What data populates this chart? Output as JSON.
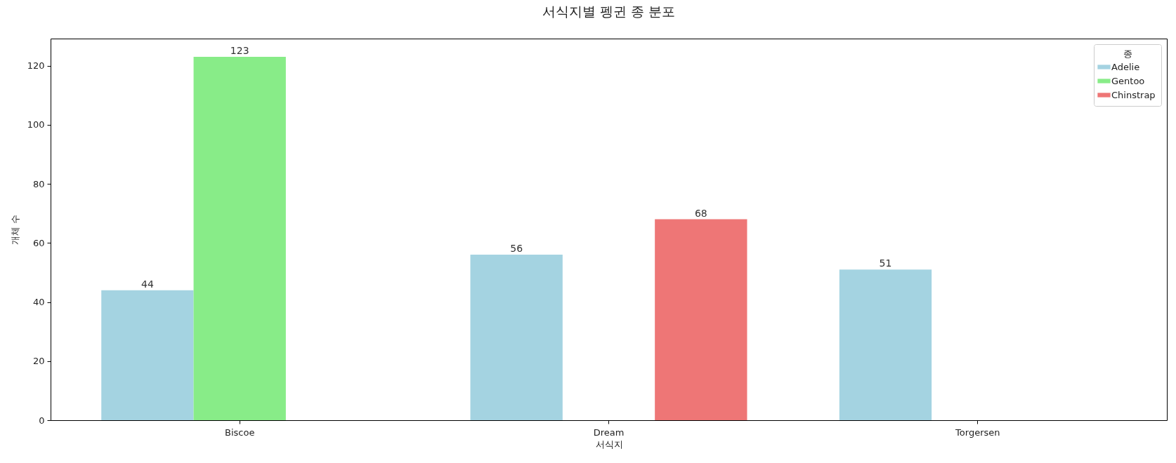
{
  "chart_data": {
    "type": "bar",
    "title": "서식지별 펭귄 종 분포",
    "xlabel": "서식지",
    "ylabel": "개체 수",
    "legend_title": "종",
    "categories": [
      "Biscoe",
      "Dream",
      "Torgersen"
    ],
    "series": [
      {
        "name": "Adelie",
        "color": "#a4d3e1",
        "values": [
          44,
          56,
          51
        ]
      },
      {
        "name": "Gentoo",
        "color": "#88ec88",
        "values": [
          123,
          null,
          null
        ]
      },
      {
        "name": "Chinstrap",
        "color": "#ee7676",
        "values": [
          null,
          68,
          null
        ]
      }
    ],
    "ylim": [
      0,
      129.15
    ],
    "yticks": [
      0,
      20,
      40,
      60,
      80,
      100,
      120
    ],
    "grid": false,
    "legend": "top right",
    "data_labels": true
  }
}
